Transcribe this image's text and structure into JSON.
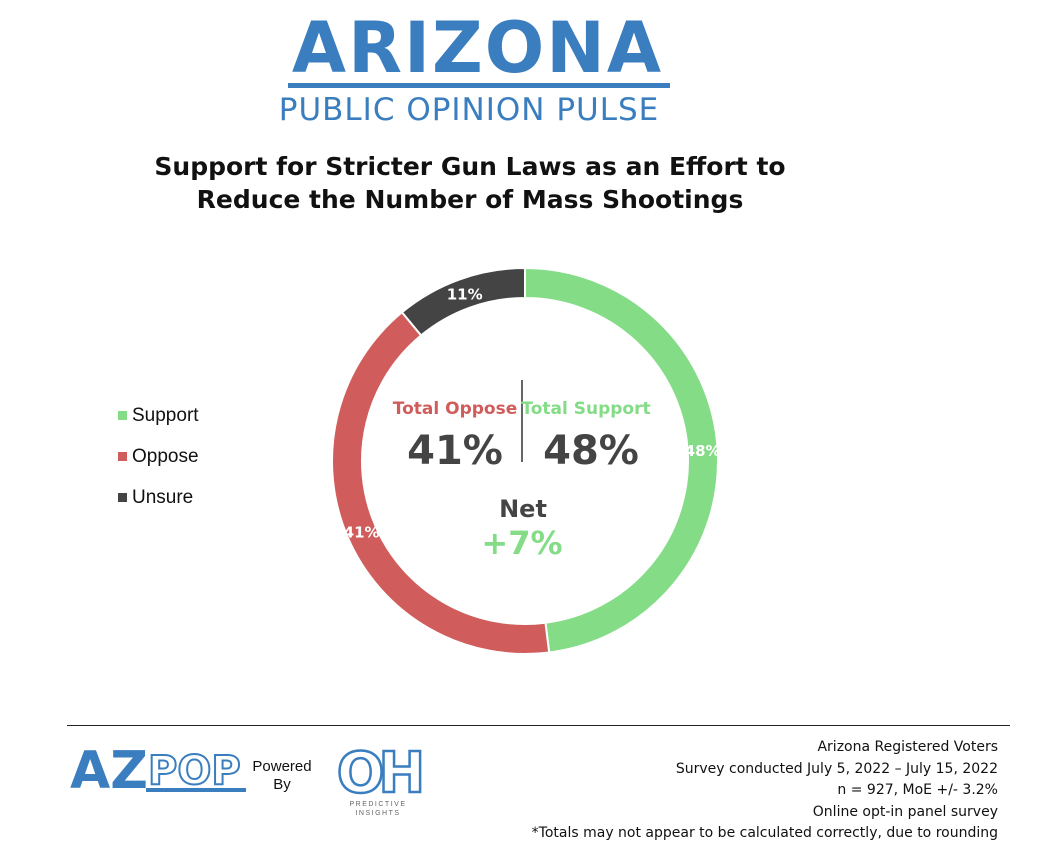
{
  "brand": {
    "title": "ARIZONA",
    "subtitle": "PUBLIC OPINION PULSE"
  },
  "chart_data": {
    "type": "pie",
    "style": "donut",
    "title_line1": "Support for Stricter Gun Laws as an Effort to",
    "title_line2": "Reduce the Number of Mass Shootings",
    "slices": [
      {
        "name": "Support",
        "value": 48,
        "label": "48%",
        "color": "#84dc87"
      },
      {
        "name": "Oppose",
        "value": 41,
        "label": "41%",
        "color": "#d05d5b"
      },
      {
        "name": "Unsure",
        "value": 11,
        "label": "11%",
        "color": "#444444"
      }
    ],
    "legend": {
      "placement": "left"
    },
    "center": {
      "oppose_label": "Total Oppose",
      "oppose_value": "41%",
      "support_label": "Total Support",
      "support_value": "48%",
      "net_label": "Net",
      "net_value": "+7%"
    }
  },
  "footer": {
    "azpop_logo": {
      "az": "AZ",
      "pop": "POP"
    },
    "powered_by_line1": "Powered",
    "powered_by_line2": "By",
    "oh_logo": {
      "mark": "OH",
      "tagline": "PREDICTIVE INSIGHTS"
    },
    "notes": [
      "Arizona Registered Voters",
      "Survey conducted July 5, 2022 – July 15, 2022",
      "n = 927, MoE +/- 3.2%",
      "Online opt-in panel survey",
      "*Totals may not appear to be calculated correctly, due to rounding"
    ]
  },
  "colors": {
    "brand_blue": "#3a7ebf",
    "support_green": "#84dc87",
    "oppose_red": "#d05d5b",
    "unsure_gray": "#444444",
    "center_text": "#444444"
  }
}
